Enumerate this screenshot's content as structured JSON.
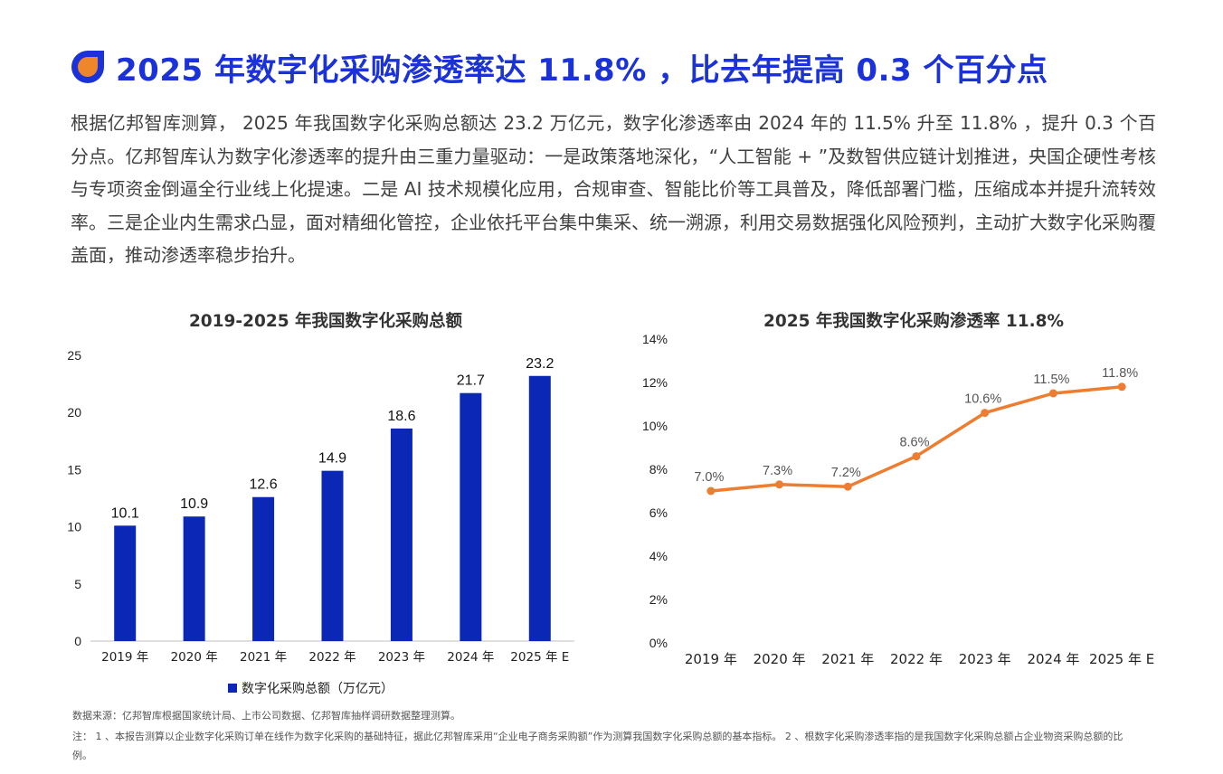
{
  "title": "2025 年数字化采购渗透率达 11.8% ，比去年提高 0.3 个百分点",
  "paragraph": "根据亿邦智库测算， 2025 年我国数字化采购总额达 23.2 万亿元，数字化渗透率由 2024 年的 11.5% 升至 11.8% ，提升 0.3 个百分点。亿邦智库认为数字化渗透率的提升由三重力量驱动：一是政策落地深化，“人工智能 + ”及数智供应链计划推进，央国企硬性考核与专项资金倒逼全行业线上化提速。二是 AI 技术规模化应用，合规审查、智能比价等工具普及，降低部署门槛，压缩成本并提升流转效率。三是企业内生需求凸显，面对精细化管控，企业依托平台集中集采、统一溯源，利用交易数据强化风险预判，主动扩大数字化采购覆盖面，推动渗透率稳步抬升。",
  "colors": {
    "title": "#1a32d8",
    "bar": "#0a27b5",
    "line": "#ed7d31",
    "logo_blue": "#1a32d8",
    "logo_orange": "#f0862a"
  },
  "chart_data": [
    {
      "type": "bar",
      "title": "2019-2025 年我国数字化采购总额",
      "categories": [
        "2019 年",
        "2020 年",
        "2021 年",
        "2022 年",
        "2023 年",
        "2024 年",
        "2025 年 E"
      ],
      "series": [
        {
          "name": "数字化采购总额（万亿元）",
          "values": [
            10.1,
            10.9,
            12.6,
            14.9,
            18.6,
            21.7,
            23.2
          ]
        }
      ],
      "value_labels": [
        "10.1",
        "10.9",
        "12.6",
        "14.9",
        "18.6",
        "21.7",
        "23.2"
      ],
      "ylim": [
        0,
        25
      ],
      "yticks": [
        "0",
        "5",
        "10",
        "15",
        "20",
        "25"
      ],
      "grid": false,
      "legend": "bottom"
    },
    {
      "type": "line",
      "title": "2025 年我国数字化采购渗透率 11.8%",
      "categories": [
        "2019 年",
        "2020 年",
        "2021 年",
        "2022 年",
        "2023 年",
        "2024 年",
        "2025 年 E"
      ],
      "series": [
        {
          "values": [
            7.0,
            7.3,
            7.2,
            8.6,
            10.6,
            11.5,
            11.8
          ]
        }
      ],
      "value_labels": [
        "7.0%",
        "7.3%",
        "7.2%",
        "8.6%",
        "10.6%",
        "11.5%",
        "11.8%"
      ],
      "ylim": [
        0,
        14
      ],
      "yticks": [
        "0%",
        "2%",
        "4%",
        "6%",
        "8%",
        "10%",
        "12%",
        "14%"
      ],
      "grid": false
    }
  ],
  "source": "数据来源：亿邦智库根据国家统计局、上市公司数据、亿邦智库抽样调研数据整理测算。",
  "note": "注： 1 、本报告测算以企业数字化采购订单在线作为数字化采购的基础特征，据此亿邦智库采用“企业电子商务采购额”作为测算我国数字化采购总额的基本指标。 2 、根数字化采购渗透率指的是我国数字化采购总额占企业物资采购总额的比例。"
}
